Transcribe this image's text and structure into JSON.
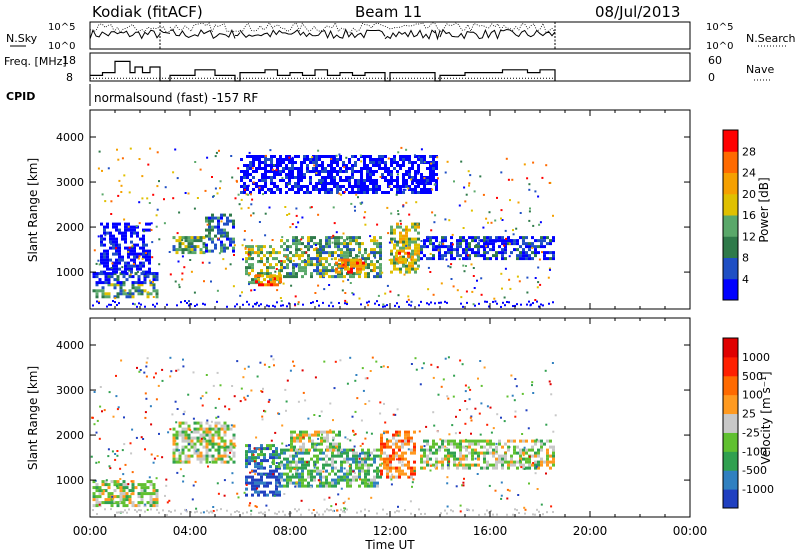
{
  "header": {
    "station": "Kodiak (fitACF)",
    "beam": "Beam 11",
    "date": "08/Jul/2013"
  },
  "mode_text": "normalsound (fast) -157 RF",
  "chart_data": [
    {
      "type": "line",
      "name": "nsky-nsearch",
      "left_label": "N.Sky",
      "right_label": "N.Search",
      "left_ticks": [
        "10^5",
        "10^0"
      ],
      "right_ticks": [
        "10^5",
        "10^0"
      ],
      "xlim": [
        0,
        24
      ],
      "series": [
        {
          "name": "N.Sky",
          "style": "solid",
          "x": [
            0,
            2.8,
            3.2,
            5.8,
            6.0,
            11.8,
            12.0,
            13.8,
            14.0,
            18.6
          ],
          "y": [
            0.55,
            0.55,
            0.55,
            0.55,
            0.55,
            0.55,
            0.55,
            0.55,
            0.55,
            0.55
          ]
        },
        {
          "name": "N.Search",
          "style": "dotted",
          "x": [
            0,
            2.8,
            3.2,
            18.6
          ],
          "y": [
            0.75,
            0.75,
            0.8,
            0.8
          ]
        }
      ],
      "markers_x": [
        2.8,
        18.6
      ]
    },
    {
      "type": "line",
      "name": "freq-nave",
      "left_label": "Freq. [MHz]",
      "right_label": "Nave",
      "left_ticks": [
        "18",
        "8"
      ],
      "right_ticks": [
        "60",
        "0"
      ],
      "xlim": [
        0,
        24
      ],
      "series": [
        {
          "name": "Freq",
          "style": "solid",
          "x": [
            0,
            0.5,
            0.8,
            1.0,
            1.3,
            1.6,
            1.8,
            2.1,
            2.4,
            2.8,
            3.2,
            4.0,
            4.2,
            4.5,
            5.0,
            5.8,
            6.0,
            6.5,
            7.0,
            7.5,
            8.0,
            8.5,
            9.0,
            9.5,
            10.0,
            10.5,
            11.0,
            11.8,
            12.0,
            13.0,
            13.8,
            14.0,
            15.0,
            16.0,
            16.5,
            17.0,
            17.5,
            18.0,
            18.6
          ],
          "y": [
            10,
            11,
            11,
            15,
            15,
            11,
            13,
            11,
            13,
            8,
            10,
            10,
            12,
            12,
            10,
            8,
            11,
            11,
            12,
            10,
            11,
            10,
            12,
            10,
            11,
            10,
            11,
            8,
            11,
            11,
            8,
            10,
            11,
            11,
            12,
            12,
            11,
            12,
            8
          ]
        },
        {
          "name": "Nave",
          "style": "dotted",
          "x": [
            0,
            18.6
          ],
          "y": [
            9,
            9
          ]
        }
      ]
    },
    {
      "type": "heatmap",
      "name": "power",
      "ylabel": "Slant Range [km]",
      "xlabel": "",
      "x_ticks": [
        "00:00",
        "04:00",
        "08:00",
        "12:00",
        "16:00",
        "20:00",
        "00:00"
      ],
      "xlim": [
        0,
        24
      ],
      "ylim": [
        180,
        4600
      ],
      "y_ticks": [
        1000,
        2000,
        3000,
        4000
      ],
      "colorbar": {
        "label": "Power [dB]",
        "ticks": [
          "28",
          "24",
          "20",
          "16",
          "12",
          "8",
          "4"
        ],
        "colors": [
          "#0000ff",
          "#1f4fc4",
          "#2f7a4a",
          "#5aa86a",
          "#e0c000",
          "#f5a000",
          "#ff6a00",
          "#ff0000"
        ]
      },
      "regions": [
        {
          "x": [
            0.1,
            2.7
          ],
          "y": [
            450,
            750
          ],
          "level": 3
        },
        {
          "x": [
            0.1,
            2.7
          ],
          "y": [
            750,
            1000
          ],
          "level": 1
        },
        {
          "x": [
            0.4,
            2.4
          ],
          "y": [
            1000,
            2100
          ],
          "level": 0
        },
        {
          "x": [
            3.3,
            4.6
          ],
          "y": [
            1450,
            1800
          ],
          "level": 3
        },
        {
          "x": [
            4.6,
            5.8
          ],
          "y": [
            1500,
            2300
          ],
          "level": 2
        },
        {
          "x": [
            6.2,
            7.6
          ],
          "y": [
            800,
            1600
          ],
          "level": 4
        },
        {
          "x": [
            6.6,
            7.6
          ],
          "y": [
            700,
            950
          ],
          "level": 6
        },
        {
          "x": [
            7.6,
            11.6
          ],
          "y": [
            900,
            1800
          ],
          "level": 3
        },
        {
          "x": [
            9.8,
            11.0
          ],
          "y": [
            1000,
            1300
          ],
          "level": 6
        },
        {
          "x": [
            12.0,
            13.2
          ],
          "y": [
            1000,
            2100
          ],
          "level": 4
        },
        {
          "x": [
            12.2,
            12.8
          ],
          "y": [
            1250,
            1450
          ],
          "level": 6
        },
        {
          "x": [
            13.2,
            18.6
          ],
          "y": [
            1300,
            1800
          ],
          "level": 1
        },
        {
          "x": [
            6.0,
            13.8
          ],
          "y": [
            2800,
            3600
          ],
          "level": 0
        }
      ]
    },
    {
      "type": "heatmap",
      "name": "velocity",
      "ylabel": "Slant Range [km]",
      "xlabel": "Time UT",
      "x_ticks": [
        "00:00",
        "04:00",
        "08:00",
        "12:00",
        "16:00",
        "20:00",
        "00:00"
      ],
      "xlim": [
        0,
        24
      ],
      "ylim": [
        180,
        4600
      ],
      "y_ticks": [
        1000,
        2000,
        3000,
        4000
      ],
      "colorbar": {
        "label": "Velocity [m s⁻¹]",
        "ticks": [
          "1000",
          "500",
          "100",
          "25",
          "-25",
          "-100",
          "-500",
          "-1000"
        ],
        "colors": [
          "#2040c0",
          "#3080c0",
          "#30a050",
          "#60c030",
          "#c8c8c8",
          "#ff9a20",
          "#ff6a00",
          "#ff2000",
          "#e00000"
        ]
      },
      "regions": [
        {
          "x": [
            0.1,
            2.7
          ],
          "y": [
            450,
            1000
          ],
          "level": 4
        },
        {
          "x": [
            3.3,
            5.8
          ],
          "y": [
            1400,
            2300
          ],
          "level": 4
        },
        {
          "x": [
            6.2,
            7.6
          ],
          "y": [
            700,
            1300
          ],
          "level": 0
        },
        {
          "x": [
            6.2,
            7.6
          ],
          "y": [
            1300,
            1800
          ],
          "level": 2
        },
        {
          "x": [
            7.6,
            11.6
          ],
          "y": [
            850,
            1700
          ],
          "level": 3
        },
        {
          "x": [
            8.0,
            10.0
          ],
          "y": [
            1700,
            2100
          ],
          "level": 4
        },
        {
          "x": [
            11.6,
            13.0
          ],
          "y": [
            1100,
            2100
          ],
          "level": 6
        },
        {
          "x": [
            13.2,
            18.6
          ],
          "y": [
            1300,
            1900
          ],
          "level": 4
        }
      ]
    }
  ]
}
